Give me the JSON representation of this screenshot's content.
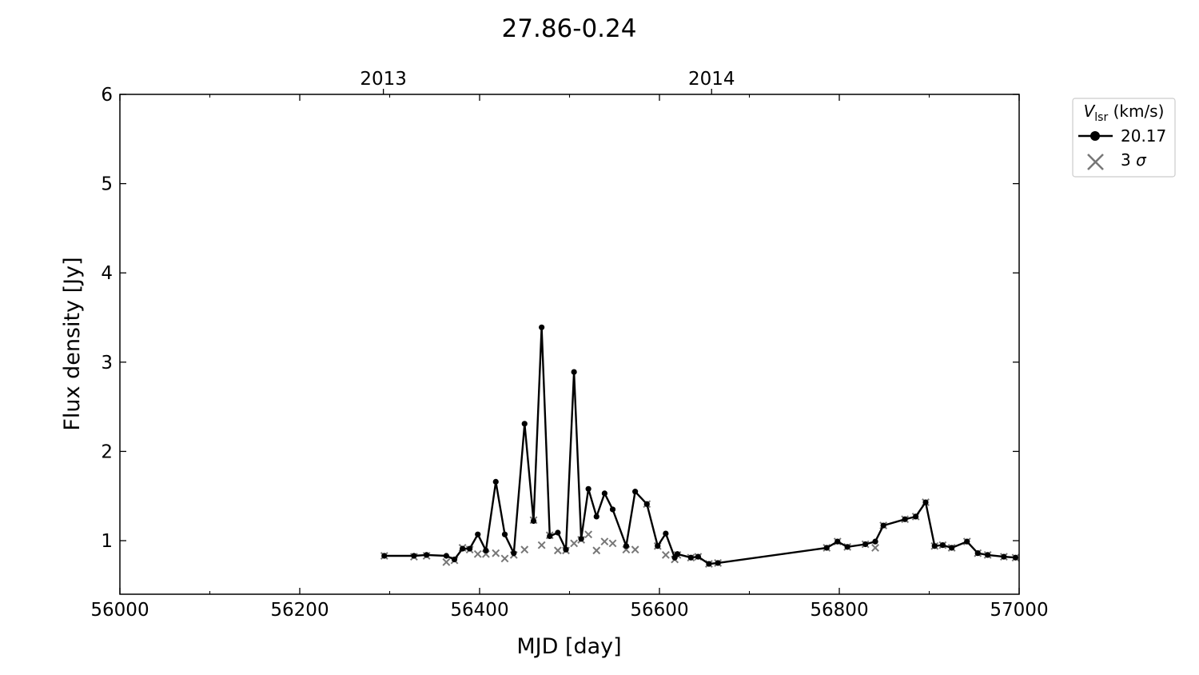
{
  "chart_data": {
    "type": "line",
    "title": "27.86-0.24",
    "xlabel": "MJD [day]",
    "ylabel": "Flux density [Jy]",
    "xlim": [
      56000,
      57000
    ],
    "ylim": [
      0.4,
      6
    ],
    "x_ticks": [
      56000,
      56200,
      56400,
      56600,
      56800,
      57000
    ],
    "x_tick_labels": [
      "56000",
      "56200",
      "56400",
      "56600",
      "56800",
      "57000"
    ],
    "y_ticks": [
      1,
      2,
      3,
      4,
      5,
      6
    ],
    "y_tick_labels": [
      "1",
      "2",
      "3",
      "4",
      "5",
      "6"
    ],
    "top_axis": {
      "ticks": [
        56293,
        56658
      ],
      "labels": [
        "2013",
        "2014"
      ]
    },
    "grid": false,
    "legend": {
      "title_main": "V",
      "title_sub": "lsr",
      "title_rest": " (km/s)",
      "entries": [
        {
          "label": "20.17",
          "marker": "circle-line",
          "color": "#000000"
        },
        {
          "label_prefix": "3 ",
          "label_greek": "σ",
          "marker": "x",
          "color": "#777777"
        }
      ],
      "placement": "outside right"
    },
    "series": [
      {
        "name": "20.17",
        "color": "#000000",
        "points": [
          [
            56294,
            0.83
          ],
          [
            56327,
            0.83
          ],
          [
            56341,
            0.84
          ],
          [
            56363,
            0.83
          ],
          [
            56372,
            0.79
          ],
          [
            56381,
            0.91
          ],
          [
            56389,
            0.91
          ],
          [
            56398,
            1.07
          ],
          [
            56407,
            0.89
          ],
          [
            56418,
            1.66
          ],
          [
            56428,
            1.07
          ],
          [
            56438,
            0.86
          ],
          [
            56450,
            2.31
          ],
          [
            56460,
            1.22
          ],
          [
            56469,
            3.39
          ],
          [
            56478,
            1.05
          ],
          [
            56487,
            1.09
          ],
          [
            56496,
            0.9
          ],
          [
            56505,
            2.89
          ],
          [
            56513,
            1.02
          ],
          [
            56521,
            1.58
          ],
          [
            56530,
            1.27
          ],
          [
            56539,
            1.53
          ],
          [
            56548,
            1.35
          ],
          [
            56563,
            0.94
          ],
          [
            56573,
            1.55
          ],
          [
            56586,
            1.41
          ],
          [
            56598,
            0.94
          ],
          [
            56607,
            1.08
          ],
          [
            56617,
            0.81
          ],
          [
            56620,
            0.85
          ],
          [
            56635,
            0.81
          ],
          [
            56643,
            0.82
          ],
          [
            56655,
            0.74
          ],
          [
            56665,
            0.75
          ],
          [
            56786,
            0.92
          ],
          [
            56798,
            0.99
          ],
          [
            56809,
            0.93
          ],
          [
            56829,
            0.96
          ],
          [
            56840,
            0.99
          ],
          [
            56849,
            1.17
          ],
          [
            56873,
            1.24
          ],
          [
            56885,
            1.27
          ],
          [
            56896,
            1.43
          ],
          [
            56906,
            0.94
          ],
          [
            56915,
            0.95
          ],
          [
            56925,
            0.92
          ],
          [
            56942,
            0.99
          ],
          [
            56954,
            0.86
          ],
          [
            56965,
            0.84
          ],
          [
            56983,
            0.82
          ],
          [
            56996,
            0.81
          ]
        ]
      },
      {
        "name": "3 σ",
        "color": "#777777",
        "points": [
          [
            56294,
            0.83
          ],
          [
            56327,
            0.82
          ],
          [
            56341,
            0.83
          ],
          [
            56363,
            0.76
          ],
          [
            56372,
            0.78
          ],
          [
            56381,
            0.92
          ],
          [
            56389,
            0.9
          ],
          [
            56398,
            0.85
          ],
          [
            56407,
            0.85
          ],
          [
            56418,
            0.86
          ],
          [
            56428,
            0.8
          ],
          [
            56438,
            0.84
          ],
          [
            56450,
            0.9
          ],
          [
            56460,
            1.23
          ],
          [
            56469,
            0.95
          ],
          [
            56478,
            1.06
          ],
          [
            56487,
            0.89
          ],
          [
            56496,
            0.89
          ],
          [
            56505,
            0.97
          ],
          [
            56513,
            1.01
          ],
          [
            56521,
            1.07
          ],
          [
            56530,
            0.89
          ],
          [
            56539,
            0.99
          ],
          [
            56548,
            0.97
          ],
          [
            56563,
            0.9
          ],
          [
            56573,
            0.9
          ],
          [
            56586,
            1.41
          ],
          [
            56598,
            0.94
          ],
          [
            56607,
            0.84
          ],
          [
            56617,
            0.79
          ],
          [
            56620,
            0.84
          ],
          [
            56635,
            0.81
          ],
          [
            56643,
            0.82
          ],
          [
            56655,
            0.74
          ],
          [
            56665,
            0.75
          ],
          [
            56786,
            0.92
          ],
          [
            56798,
            0.99
          ],
          [
            56809,
            0.93
          ],
          [
            56829,
            0.96
          ],
          [
            56840,
            0.92
          ],
          [
            56849,
            1.17
          ],
          [
            56873,
            1.24
          ],
          [
            56885,
            1.27
          ],
          [
            56896,
            1.43
          ],
          [
            56906,
            0.94
          ],
          [
            56915,
            0.95
          ],
          [
            56925,
            0.92
          ],
          [
            56942,
            0.99
          ],
          [
            56954,
            0.86
          ],
          [
            56965,
            0.84
          ],
          [
            56983,
            0.82
          ],
          [
            56996,
            0.81
          ]
        ]
      }
    ]
  }
}
